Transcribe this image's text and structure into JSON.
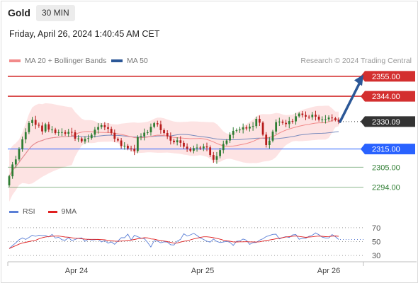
{
  "header": {
    "symbol": "Gold",
    "timeframe": "30 MIN",
    "timestamp": "Friday, April 26, 2024 1:40:45 AM CET"
  },
  "legend": {
    "ma20_label": "MA 20 + Bollinger Bands",
    "ma20_color": "#f28a8a",
    "ma50_label": "MA 50",
    "ma50_color": "#2b5797",
    "credit": "Research © 2024 Trading Central"
  },
  "rsi_legend": {
    "rsi_label": "RSI",
    "rsi_color": "#5b7fd6",
    "ma9_label": "9MA",
    "ma9_color": "#e02020"
  },
  "chart_data": [
    {
      "type": "candlestick",
      "x_ticks": [
        "Apr 24",
        "Apr 25",
        "Apr 26"
      ],
      "ylim": [
        2288,
        2360
      ],
      "levels": [
        {
          "value": "2355.00",
          "color": "#d32f2f",
          "kind": "resistance",
          "label_style": "filled"
        },
        {
          "value": "2344.00",
          "color": "#d32f2f",
          "kind": "resistance",
          "label_style": "filled"
        },
        {
          "value": "2330.09",
          "color": "#333333",
          "kind": "last-price",
          "label_style": "filled"
        },
        {
          "value": "2315.00",
          "color": "#2962ff",
          "kind": "pivot",
          "label_style": "filled"
        },
        {
          "value": "2305.00",
          "color": "#2e7d32",
          "kind": "support",
          "label_style": "text"
        },
        {
          "value": "2294.00",
          "color": "#2e7d32",
          "kind": "support",
          "label_style": "text"
        }
      ],
      "arrow": {
        "from": 2330,
        "to": 2354,
        "color": "#2b5797"
      },
      "up_color": "#2e7d32",
      "down_color": "#b71c1c",
      "band_color": "#fcdcdc",
      "ma20_color": "#f28a8a",
      "ma50_color": "#7a8bbd",
      "closes": [
        2300.0,
        2306.5,
        2309.3,
        2315.0,
        2320.3,
        2324.3,
        2329.3,
        2331.0,
        2328.3,
        2327.9,
        2324.7,
        2328.6,
        2325.7,
        2325.7,
        2323.8,
        2324.2,
        2324.3,
        2323.4,
        2324.4,
        2324.2,
        2320.7,
        2320.8,
        2319.2,
        2320.6,
        2321.0,
        2322.9,
        2325.6,
        2327.1,
        2328.1,
        2327.0,
        2326.1,
        2323.9,
        2320.6,
        2319.7,
        2316.6,
        2316.8,
        2315.3,
        2315.2,
        2313.8,
        2321.5,
        2322.0,
        2324.0,
        2324.2,
        2327.2,
        2329.2,
        2328.6,
        2325.4,
        2323.8,
        2322.0,
        2319.6,
        2318.7,
        2319.8,
        2318.4,
        2316.3,
        2315.2,
        2314.0,
        2315.5,
        2315.8,
        2315.4,
        2316.4,
        2315.9,
        2311.7,
        2309.1,
        2311.1,
        2314.4,
        2317.8,
        2319.7,
        2322.8,
        2325.0,
        2325.4,
        2325.7,
        2326.9,
        2326.3,
        2327.3,
        2327.6,
        2331.6,
        2329.5,
        2322.9,
        2317.2,
        2319.6,
        2324.6,
        2329.8,
        2330.1,
        2329.4,
        2328.7,
        2330.4,
        2330.2,
        2333.0,
        2334.5,
        2333.7,
        2332.8,
        2332.5,
        2333.9,
        2332.8,
        2331.2,
        2331.3,
        2331.4,
        2332.3,
        2331.9,
        2331.0,
        2330.09
      ],
      "rsi": {
        "levels": [
          70,
          50,
          30
        ],
        "ylim": [
          25,
          80
        ],
        "values": [
          40.0,
          44.3,
          48.1,
          52.6,
          55.3,
          53.1,
          56.0,
          59.1,
          57.7,
          59.2,
          58.7,
          58.6,
          56.7,
          60.3,
          55.1,
          56.3,
          52.6,
          52.0,
          55.7,
          51.5,
          53.0,
          54.8,
          55.4,
          50.5,
          53.4,
          52.3,
          52.7,
          53.3,
          49.4,
          51.4,
          47.8,
          49.4,
          46.1,
          50.8,
          55.6,
          55.6,
          60.8,
          52.1,
          59.0,
          57.0,
          55.0,
          54.2,
          48.8,
          42.2,
          51.3,
          50.7,
          48.2,
          49.6,
          49.2,
          45.5,
          45.1,
          50.7,
          53.2,
          61.3,
          58.1,
          59.6,
          61.8,
          58.7,
          55.3,
          53.0,
          50.6,
          49.2,
          53.6,
          50.3,
          48.6,
          49.3,
          50.5,
          48.8,
          44.6,
          50.5,
          51.0,
          53.6,
          52.0,
          46.0,
          48.5,
          48.7,
          52.1,
          54.0,
          57.2,
          58.8,
          60.3,
          60.6,
          53.8,
          55.8,
          57.1,
          56.0,
          59.5,
          60.1,
          53.3,
          54.8,
          54.6,
          57.6,
          59.1,
          62.5,
          59.8,
          56.4,
          55.3,
          55.2,
          60.0,
          57.1,
          53.0
        ]
      }
    }
  ]
}
